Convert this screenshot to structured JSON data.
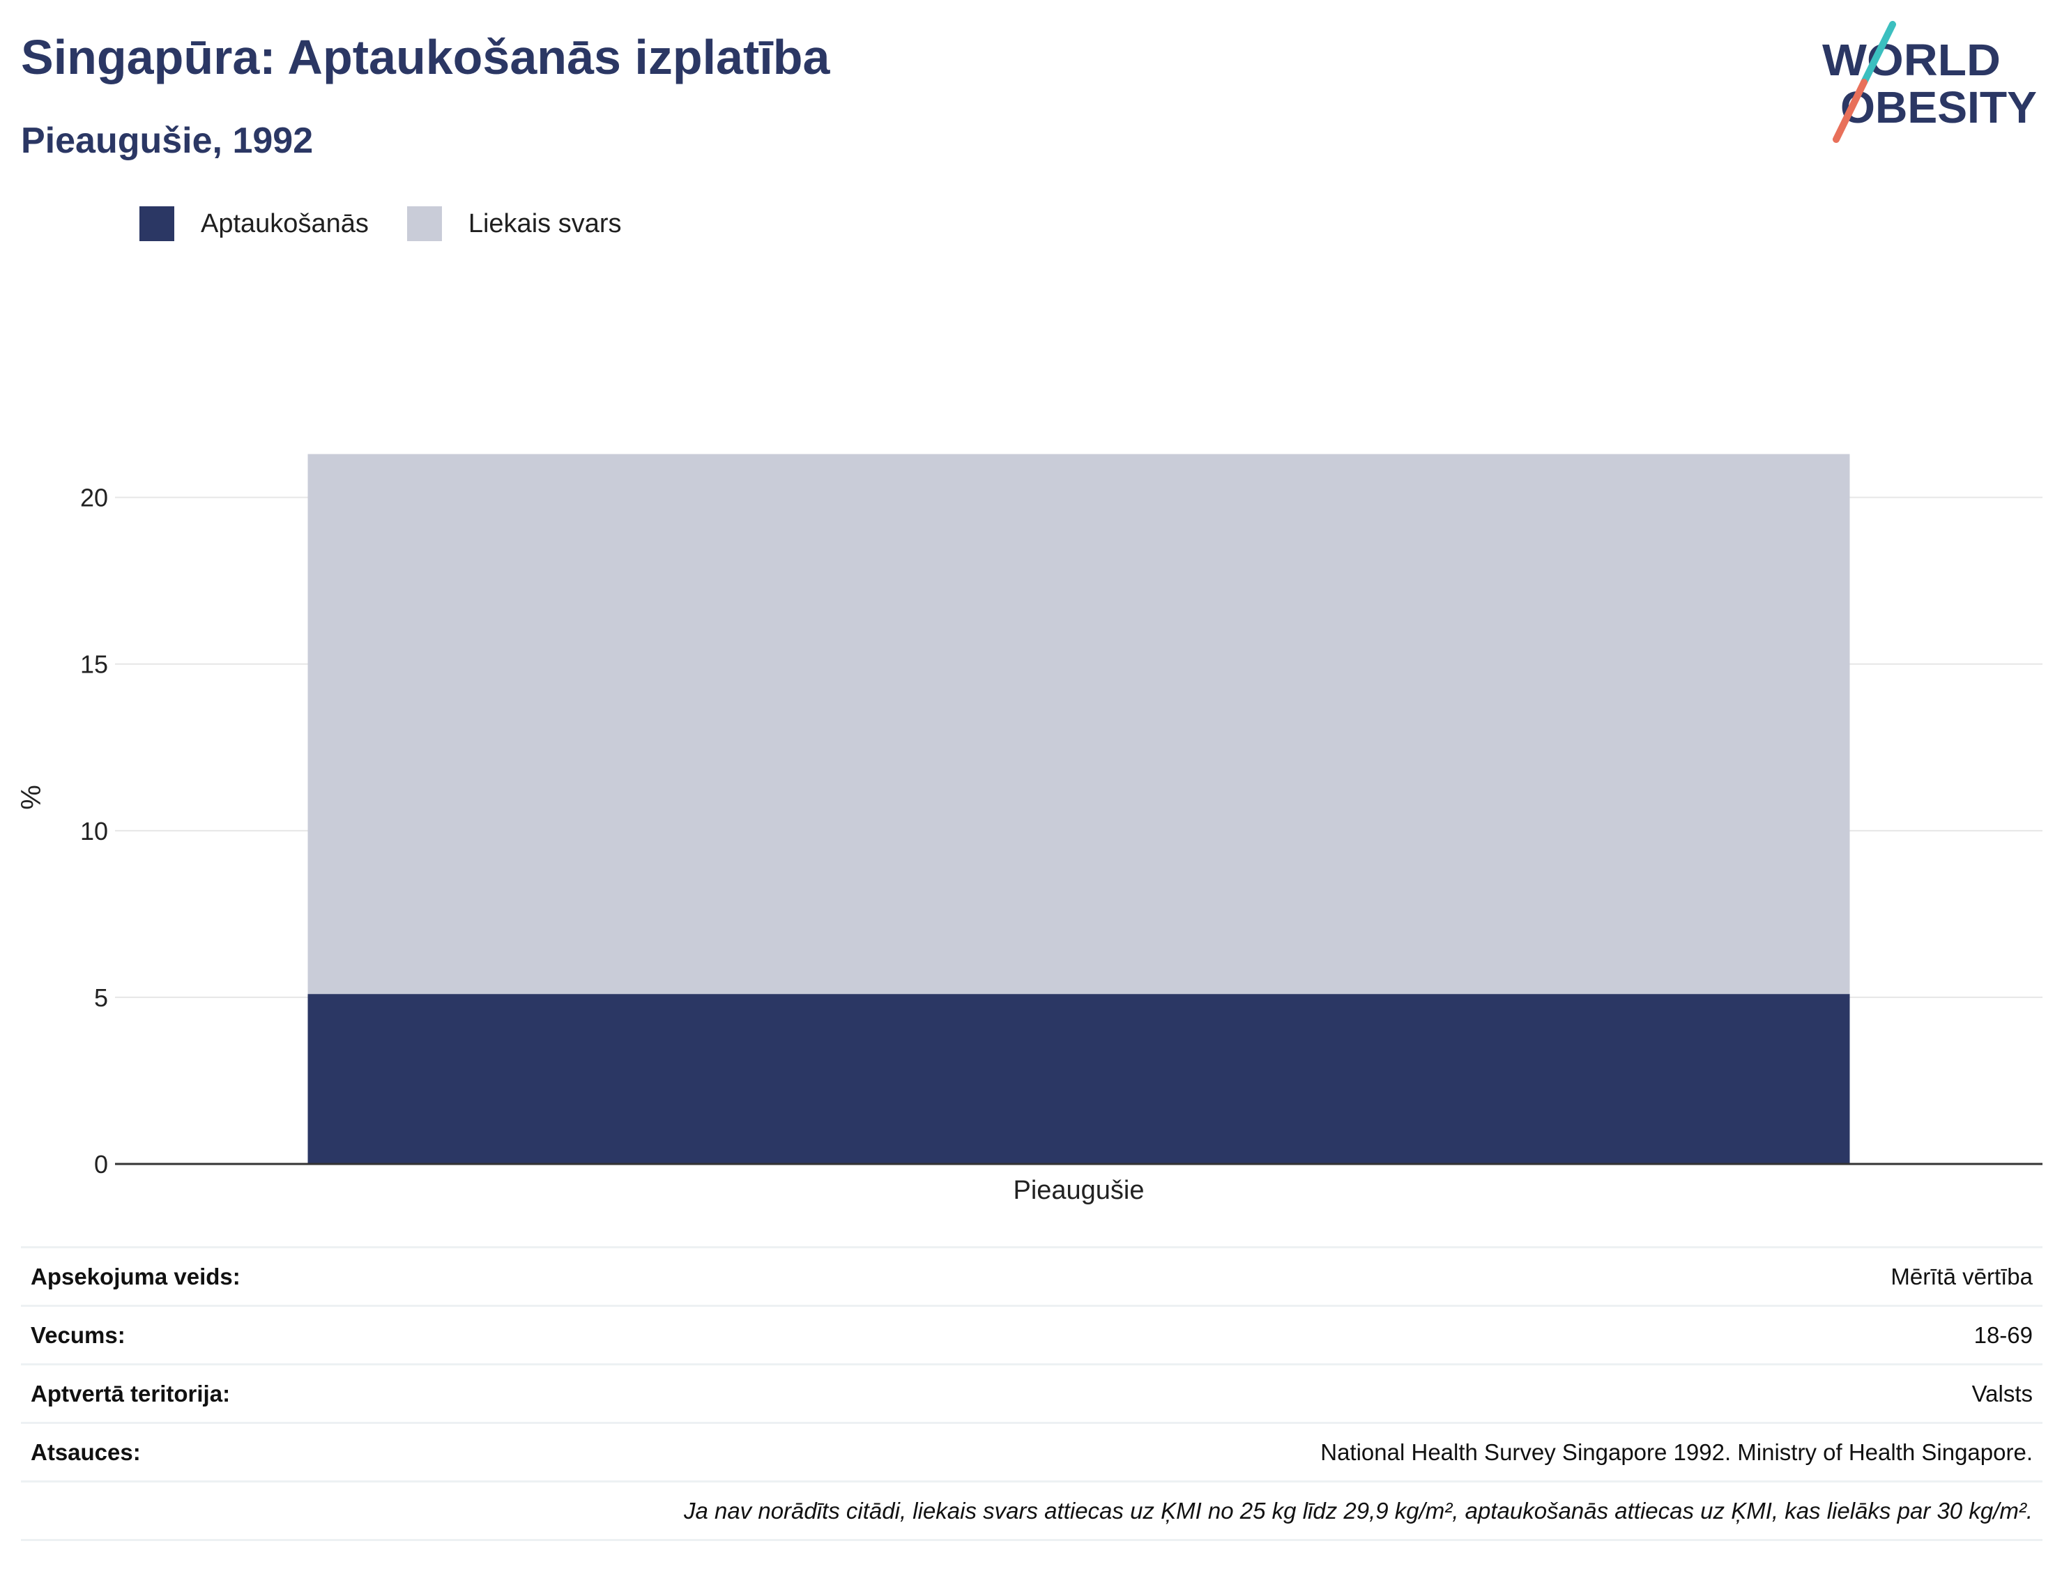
{
  "header": {
    "title": "Singapūra: Aptaukošanās izplatība",
    "subtitle": "Pieaugušie, 1992"
  },
  "logo": {
    "line1": "WORLD",
    "line2": "OBESITY",
    "colors": {
      "text": "#2b3764",
      "slash_top": "#3bbfbf",
      "slash_bottom": "#e8705a"
    }
  },
  "legend": {
    "items": [
      {
        "label": "Aptaukošanās",
        "color": "#2b3764"
      },
      {
        "label": "Liekais svars",
        "color": "#c9ccd8"
      }
    ]
  },
  "chart_data": {
    "type": "bar",
    "stacked": true,
    "categories": [
      "Pieaugušie"
    ],
    "series": [
      {
        "name": "Aptaukošanās",
        "values": [
          5.1
        ],
        "color": "#2b3764"
      },
      {
        "name": "Liekais svars",
        "values": [
          16.2
        ],
        "color": "#c9ccd8"
      }
    ],
    "xlabel": "",
    "ylabel": "%",
    "ylim": [
      0,
      22
    ],
    "yticks": [
      0,
      5,
      10,
      15,
      20
    ],
    "grid": true,
    "legend_position": "top-left"
  },
  "info": {
    "rows": [
      {
        "label": "Apsekojuma veids:",
        "value": "Mērītā vērtība"
      },
      {
        "label": "Vecums:",
        "value": "18-69"
      },
      {
        "label": "Aptvertā teritorija:",
        "value": "Valsts"
      },
      {
        "label": "Atsauces:",
        "value": "National Health Survey Singapore 1992. Ministry of Health Singapore."
      }
    ],
    "note": "Ja nav norādīts citādi, liekais svars attiecas uz ĶMI no 25 kg līdz 29,9 kg/m², aptaukošanās attiecas uz ĶMI, kas lielāks par 30 kg/m²."
  }
}
